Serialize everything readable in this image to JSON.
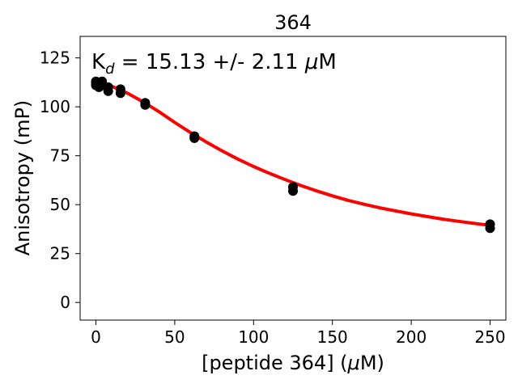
{
  "chart_data": {
    "type": "scatter",
    "title": "364",
    "xlabel_parts": [
      "[peptide 364] (",
      "μ",
      "M)"
    ],
    "ylabel": "Anisotropy (mP)",
    "annotation_parts": [
      "K",
      "d",
      " = 15.13 +/- 2.11 ",
      "μ",
      "M"
    ],
    "xlim": [
      -10,
      260
    ],
    "ylim": [
      -9,
      136
    ],
    "x_ticks": [
      0,
      50,
      100,
      150,
      200,
      250
    ],
    "y_ticks": [
      0,
      25,
      50,
      75,
      100,
      125
    ],
    "grid": false,
    "legend": false,
    "series": [
      {
        "type": "scatter",
        "color": "#000000",
        "x": [
          0,
          0,
          0,
          1.95,
          1.95,
          3.9,
          3.9,
          7.8,
          7.8,
          15.6,
          15.6,
          31.25,
          31.25,
          62.5,
          62.5,
          125,
          125,
          250,
          250
        ],
        "y": [
          113,
          111,
          112,
          112,
          110,
          113,
          111,
          110,
          108,
          109,
          107,
          102,
          101,
          85,
          84,
          59,
          57,
          40,
          38
        ]
      },
      {
        "type": "line",
        "color": "#ff0000",
        "x": [
          0,
          10,
          20,
          30,
          40,
          50,
          60,
          70,
          80,
          90,
          100,
          110,
          120,
          130,
          140,
          150,
          160,
          170,
          180,
          190,
          200,
          210,
          220,
          230,
          240,
          250
        ],
        "y": [
          112,
          110.5,
          107,
          102.5,
          97.5,
          92,
          86.8,
          82,
          77.5,
          73.3,
          69.5,
          66,
          62.8,
          59.8,
          57,
          54.5,
          52.2,
          50.2,
          48.4,
          46.8,
          45.3,
          43.9,
          42.6,
          41.5,
          40.4,
          39.4
        ]
      }
    ]
  },
  "colors": {
    "points": "#000000",
    "fit_line": "#ff0000",
    "axes": "#000000"
  }
}
